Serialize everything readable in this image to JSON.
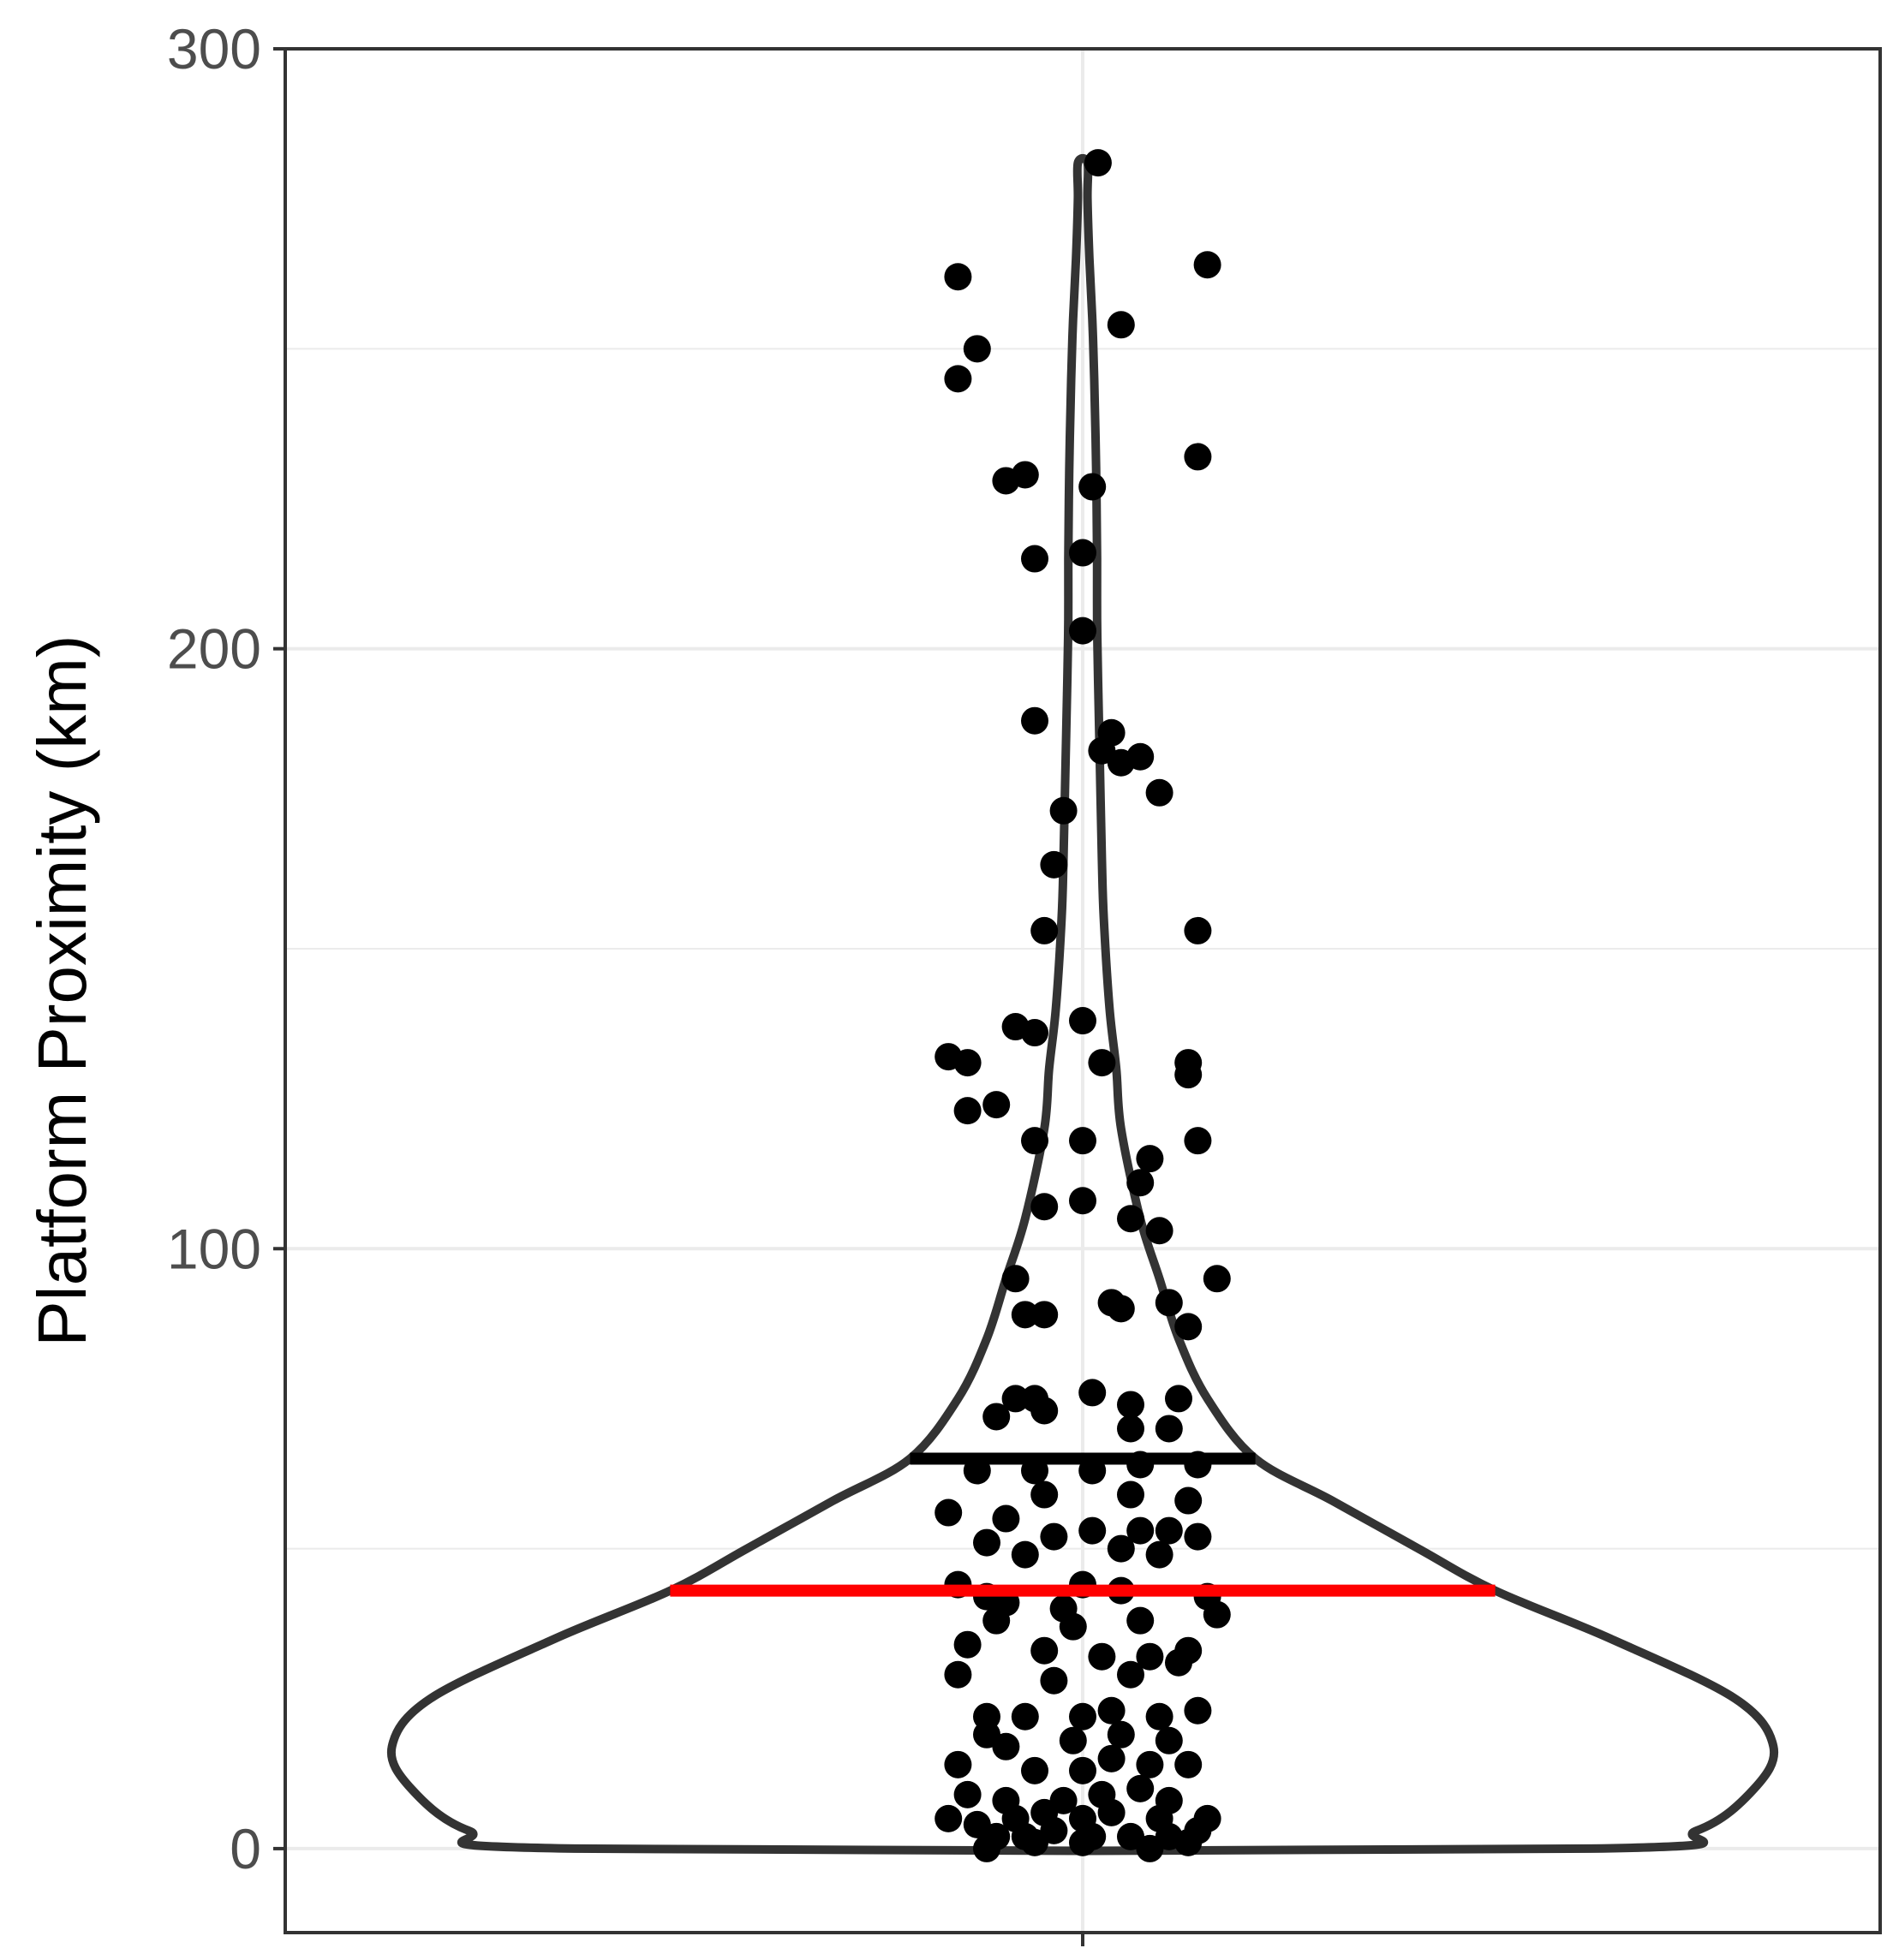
{
  "chart_data": {
    "type": "violin",
    "ylabel": "Platform Proximity (km)",
    "xlabel": "",
    "ylim": [
      -14,
      300
    ],
    "y_ticks": [
      0,
      100,
      200,
      300
    ],
    "y_minor_gridlines": [
      50,
      150,
      250
    ],
    "grid": true,
    "legend": "none",
    "colors": {
      "outline": "#333333",
      "points": "#000000",
      "mean_line": "#000000",
      "median_line": "#ff0000",
      "grid": "#ebebeb",
      "panel_border": "#333333"
    },
    "mean": 65,
    "median": 43,
    "violin_outline": [
      [
        0,
        0.53
      ],
      [
        3,
        0.64
      ],
      [
        10,
        0.7
      ],
      [
        17,
        0.72
      ],
      [
        25,
        0.68
      ],
      [
        35,
        0.55
      ],
      [
        43,
        0.43
      ],
      [
        50,
        0.35
      ],
      [
        58,
        0.26
      ],
      [
        65,
        0.18
      ],
      [
        75,
        0.13
      ],
      [
        85,
        0.1
      ],
      [
        95,
        0.08
      ],
      [
        105,
        0.06
      ],
      [
        120,
        0.04
      ],
      [
        130,
        0.035
      ],
      [
        140,
        0.028
      ],
      [
        155,
        0.022
      ],
      [
        165,
        0.02
      ],
      [
        180,
        0.018
      ],
      [
        195,
        0.016
      ],
      [
        205,
        0.015
      ],
      [
        215,
        0.015
      ],
      [
        230,
        0.014
      ],
      [
        245,
        0.012
      ],
      [
        255,
        0.01
      ],
      [
        265,
        0.007
      ],
      [
        275,
        0.005
      ],
      [
        281,
        0.005
      ]
    ],
    "points": [
      [
        0.016,
        281
      ],
      [
        -0.13,
        262
      ],
      [
        0.13,
        264
      ],
      [
        0.04,
        254
      ],
      [
        -0.11,
        250
      ],
      [
        -0.13,
        245
      ],
      [
        0.12,
        232
      ],
      [
        -0.08,
        228
      ],
      [
        -0.06,
        229
      ],
      [
        0.01,
        227
      ],
      [
        -0.05,
        215
      ],
      [
        0.0,
        216
      ],
      [
        0.0,
        203
      ],
      [
        -0.05,
        188
      ],
      [
        0.03,
        186
      ],
      [
        0.02,
        183
      ],
      [
        0.06,
        182
      ],
      [
        0.04,
        181
      ],
      [
        0.08,
        176
      ],
      [
        -0.02,
        173
      ],
      [
        -0.03,
        164
      ],
      [
        -0.04,
        153
      ],
      [
        0.12,
        153
      ],
      [
        -0.07,
        137
      ],
      [
        -0.05,
        136
      ],
      [
        0.0,
        138
      ],
      [
        -0.14,
        132
      ],
      [
        -0.12,
        131
      ],
      [
        0.02,
        131
      ],
      [
        0.11,
        131
      ],
      [
        0.11,
        129
      ],
      [
        -0.12,
        123
      ],
      [
        -0.09,
        124
      ],
      [
        -0.05,
        118
      ],
      [
        0.0,
        118
      ],
      [
        0.12,
        118
      ],
      [
        0.07,
        115
      ],
      [
        0.06,
        111
      ],
      [
        -0.04,
        107
      ],
      [
        0.0,
        108
      ],
      [
        0.05,
        105
      ],
      [
        0.08,
        103
      ],
      [
        0.14,
        95
      ],
      [
        -0.07,
        95
      ],
      [
        -0.06,
        89
      ],
      [
        -0.04,
        89
      ],
      [
        0.03,
        91
      ],
      [
        0.04,
        90
      ],
      [
        0.09,
        91
      ],
      [
        0.11,
        87
      ],
      [
        0.01,
        76
      ],
      [
        -0.07,
        75
      ],
      [
        -0.05,
        75
      ],
      [
        0.05,
        74
      ],
      [
        0.1,
        75
      ],
      [
        -0.09,
        72
      ],
      [
        -0.04,
        73
      ],
      [
        0.05,
        70
      ],
      [
        0.09,
        70
      ],
      [
        -0.11,
        63
      ],
      [
        -0.05,
        63
      ],
      [
        0.01,
        63
      ],
      [
        0.06,
        64
      ],
      [
        0.12,
        64
      ],
      [
        -0.04,
        59
      ],
      [
        0.05,
        59
      ],
      [
        0.11,
        58
      ],
      [
        -0.14,
        56
      ],
      [
        -0.08,
        55
      ],
      [
        -0.03,
        52
      ],
      [
        0.01,
        53
      ],
      [
        0.06,
        53
      ],
      [
        0.09,
        53
      ],
      [
        0.12,
        52
      ],
      [
        -0.1,
        51
      ],
      [
        -0.06,
        49
      ],
      [
        0.04,
        50
      ],
      [
        0.08,
        49
      ],
      [
        -0.13,
        44
      ],
      [
        -0.1,
        42
      ],
      [
        -0.08,
        41
      ],
      [
        0.0,
        44
      ],
      [
        0.04,
        43
      ],
      [
        0.13,
        42
      ],
      [
        -0.02,
        40
      ],
      [
        -0.09,
        38
      ],
      [
        0.14,
        39
      ],
      [
        -0.01,
        37
      ],
      [
        0.06,
        38
      ],
      [
        -0.12,
        34
      ],
      [
        -0.04,
        33
      ],
      [
        0.02,
        32
      ],
      [
        0.07,
        32
      ],
      [
        0.11,
        33
      ],
      [
        -0.13,
        29
      ],
      [
        -0.03,
        28
      ],
      [
        0.05,
        29
      ],
      [
        0.1,
        31
      ],
      [
        -0.1,
        22
      ],
      [
        -0.06,
        22
      ],
      [
        0.0,
        22
      ],
      [
        0.03,
        23
      ],
      [
        0.08,
        22
      ],
      [
        0.12,
        23
      ],
      [
        -0.1,
        19
      ],
      [
        -0.08,
        17
      ],
      [
        -0.01,
        18
      ],
      [
        0.04,
        19
      ],
      [
        0.09,
        18
      ],
      [
        -0.13,
        14
      ],
      [
        -0.05,
        13
      ],
      [
        0.0,
        13
      ],
      [
        0.03,
        15
      ],
      [
        0.07,
        14
      ],
      [
        0.11,
        14
      ],
      [
        -0.12,
        9
      ],
      [
        -0.08,
        8
      ],
      [
        -0.02,
        8
      ],
      [
        0.02,
        9
      ],
      [
        0.06,
        10
      ],
      [
        0.09,
        8
      ],
      [
        -0.14,
        5
      ],
      [
        -0.11,
        4
      ],
      [
        -0.07,
        5
      ],
      [
        -0.04,
        6
      ],
      [
        0.0,
        5
      ],
      [
        0.03,
        6
      ],
      [
        0.08,
        5
      ],
      [
        0.13,
        5
      ],
      [
        -0.09,
        2
      ],
      [
        -0.06,
        2
      ],
      [
        -0.03,
        3
      ],
      [
        0.01,
        2
      ],
      [
        0.05,
        2
      ],
      [
        0.09,
        2
      ],
      [
        0.12,
        3
      ],
      [
        -0.1,
        0
      ],
      [
        -0.05,
        1
      ],
      [
        0.0,
        1
      ],
      [
        0.07,
        0
      ],
      [
        0.11,
        1
      ]
    ]
  }
}
